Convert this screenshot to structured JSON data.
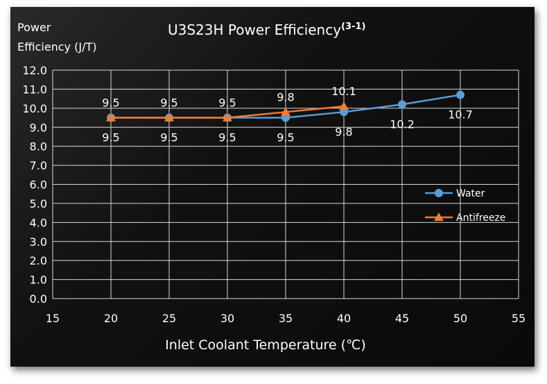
{
  "chart_data": {
    "type": "line",
    "title": "U3S23H Power Efficiency",
    "title_superscript": "(3-1)",
    "ylabel_lines": [
      "Power",
      "Efficiency (J/T)"
    ],
    "xlabel": "Inlet Coolant Temperature (℃)",
    "xlim": [
      15,
      55
    ],
    "ylim": [
      0.0,
      12.0
    ],
    "x_ticks": [
      "15",
      "20",
      "25",
      "30",
      "35",
      "40",
      "45",
      "50",
      "55"
    ],
    "y_ticks": [
      "0.0",
      "1.0",
      "2.0",
      "3.0",
      "4.0",
      "5.0",
      "6.0",
      "7.0",
      "8.0",
      "9.0",
      "10.0",
      "11.0",
      "12.0"
    ],
    "grid": true,
    "legend_position": "right",
    "series": [
      {
        "name": "Water",
        "color": "#5b9bd5",
        "marker": "circle",
        "label_position": "below",
        "x": [
          20,
          25,
          30,
          35,
          40,
          45,
          50
        ],
        "values": [
          9.5,
          9.5,
          9.5,
          9.5,
          9.8,
          10.2,
          10.7
        ],
        "data_labels": [
          "9.5",
          "9.5",
          "9.5",
          "9.5",
          "9.8",
          "10.2",
          "10.7"
        ]
      },
      {
        "name": "Antifreeze",
        "color": "#ed7d31",
        "marker": "triangle",
        "label_position": "above",
        "x": [
          20,
          25,
          30,
          35,
          40
        ],
        "values": [
          9.5,
          9.5,
          9.5,
          9.8,
          10.1
        ],
        "data_labels": [
          "9.5",
          "9.5",
          "9.5",
          "9.8",
          "10.1"
        ]
      }
    ]
  }
}
